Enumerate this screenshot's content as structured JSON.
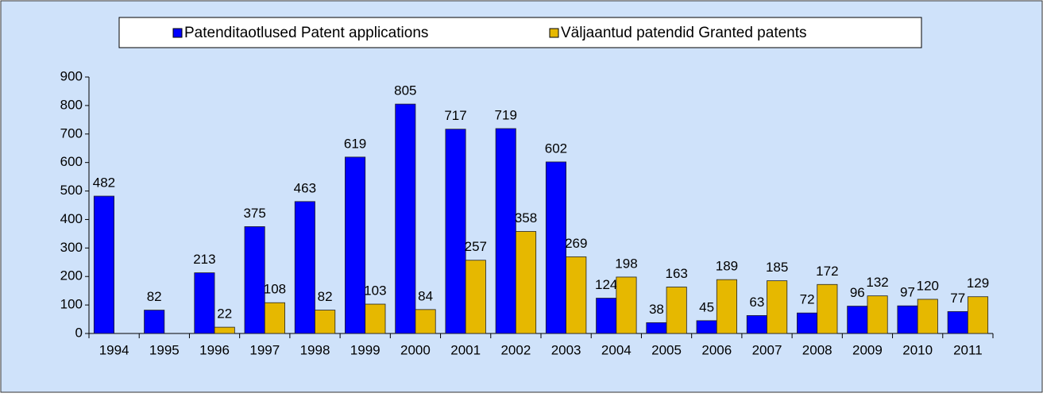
{
  "chart_data": {
    "type": "bar",
    "categories": [
      "1994",
      "1995",
      "1996",
      "1997",
      "1998",
      "1999",
      "2000",
      "2001",
      "2002",
      "2003",
      "2004",
      "2005",
      "2006",
      "2007",
      "2008",
      "2009",
      "2010",
      "2011"
    ],
    "series": [
      {
        "name": "Patenditaotlused Patent applications",
        "color": "#0000ff",
        "values": [
          482,
          82,
          213,
          375,
          463,
          619,
          805,
          717,
          719,
          602,
          124,
          38,
          45,
          63,
          72,
          96,
          97,
          77
        ]
      },
      {
        "name": "Väljaantud patendid Granted patents",
        "color": "#e6b800",
        "values": [
          null,
          null,
          22,
          108,
          82,
          103,
          84,
          257,
          358,
          269,
          198,
          163,
          189,
          185,
          172,
          132,
          120,
          129
        ]
      }
    ],
    "ylim": [
      0,
      900
    ],
    "yticks": [
      0,
      100,
      200,
      300,
      400,
      500,
      600,
      700,
      800,
      900
    ],
    "legend": "top"
  }
}
